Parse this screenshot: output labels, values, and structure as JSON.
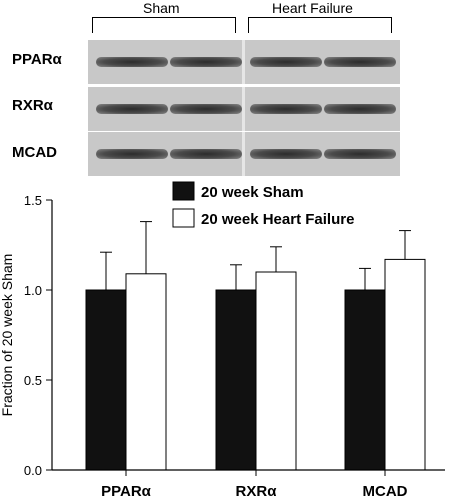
{
  "blot": {
    "groups": [
      "Sham",
      "Heart Failure"
    ],
    "proteins": [
      "PPARα",
      "RXRα",
      "MCAD"
    ]
  },
  "chart_data": {
    "type": "bar",
    "categories": [
      "PPARα",
      "RXRα",
      "MCAD"
    ],
    "series": [
      {
        "name": "20 week Sham",
        "color": "#111111",
        "values": [
          1.0,
          1.0,
          1.0
        ],
        "errors": [
          0.21,
          0.14,
          0.12
        ]
      },
      {
        "name": "20 week Heart Failure",
        "color": "#ffffff",
        "values": [
          1.09,
          1.1,
          1.17
        ],
        "errors": [
          0.29,
          0.14,
          0.16
        ]
      }
    ],
    "ylabel": "Fraction of 20 week Sham",
    "xlabel": "",
    "ylim": [
      0,
      1.5
    ],
    "yticks": [
      "0.0",
      "0.5",
      "1.0",
      "1.5"
    ],
    "legend": "top",
    "grid": false
  }
}
